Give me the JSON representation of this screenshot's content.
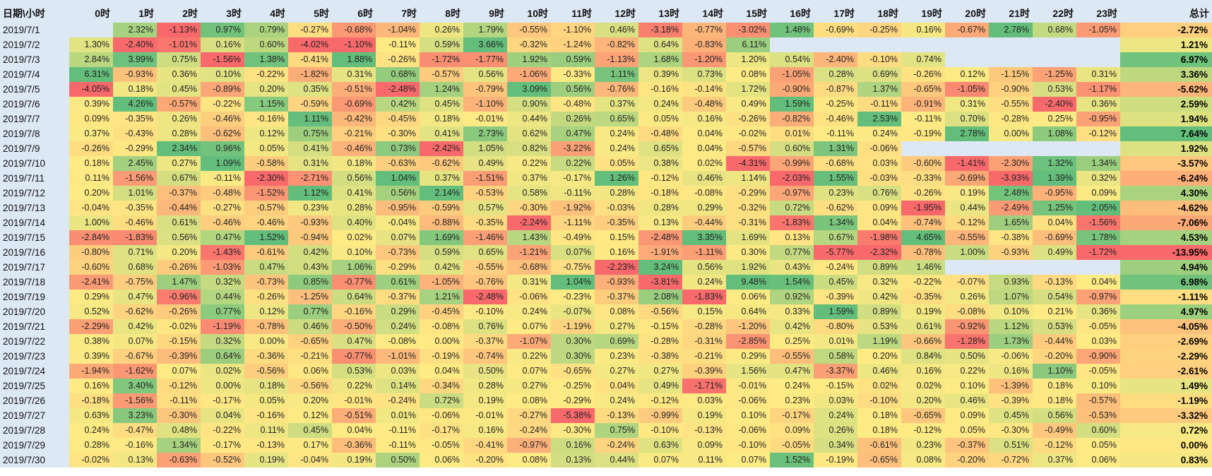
{
  "chart_data": {
    "type": "heatmap",
    "corner_label": "日期\\小时",
    "hours": [
      "0时",
      "1时",
      "2时",
      "3时",
      "4时",
      "5时",
      "6时",
      "7时",
      "8时",
      "9时",
      "10时",
      "11时",
      "12时",
      "13时",
      "14时",
      "15时",
      "16时",
      "17时",
      "18时",
      "19时",
      "20时",
      "21时",
      "22时",
      "23时"
    ],
    "total_label": "总计",
    "color_scale": {
      "min_color": "#f8696b",
      "mid_color": "#ffeb84",
      "max_color": "#63be7b",
      "total_max_color": "#63be7b"
    },
    "rows": [
      {
        "date": "2019/7/1",
        "values": [
          "",
          "2.32%",
          "-1.13%",
          "0.97%",
          "0.79%",
          "-0.27%",
          "-0.68%",
          "-1.04%",
          "0.26%",
          "1.79%",
          "-0.55%",
          "-1.10%",
          "0.46%",
          "-3.18%",
          "-0.77%",
          "-3.02%",
          "1.48%",
          "-0.69%",
          "-0.25%",
          "0.16%",
          "-0.67%",
          "2.78%",
          "0.68%",
          "-1.05%"
        ],
        "total": "-2.72%"
      },
      {
        "date": "2019/7/2",
        "values": [
          "1.30%",
          "-2.40%",
          "-1.01%",
          "0.16%",
          "0.60%",
          "-4.02%",
          "-1.10%",
          "-0.11%",
          "0.59%",
          "3.66%",
          "-0.32%",
          "-1.24%",
          "-0.82%",
          "0.64%",
          "-0.83%",
          "6.11%",
          "",
          "",
          "",
          "",
          "",
          "",
          "",
          ""
        ],
        "total": "1.21%"
      },
      {
        "date": "2019/7/3",
        "values": [
          "2.84%",
          "3.99%",
          "0.75%",
          "-1.56%",
          "1.38%",
          "-0.41%",
          "1.88%",
          "-0.26%",
          "-1.72%",
          "-1.77%",
          "1.92%",
          "0.59%",
          "-1.13%",
          "1.68%",
          "-1.20%",
          "1.20%",
          "0.54%",
          "-2.40%",
          "-0.10%",
          "0.74%",
          "",
          "",
          "",
          ""
        ],
        "total": "6.97%"
      },
      {
        "date": "2019/7/4",
        "values": [
          "6.31%",
          "-0.93%",
          "0.36%",
          "0.10%",
          "-0.22%",
          "-1.82%",
          "0.31%",
          "0.68%",
          "-0.57%",
          "0.56%",
          "-1.06%",
          "-0.33%",
          "1.11%",
          "0.39%",
          "0.73%",
          "0.08%",
          "-1.05%",
          "0.28%",
          "0.69%",
          "-0.26%",
          "0.12%",
          "-1.15%",
          "-1.25%",
          "0.31%"
        ],
        "total": "3.36%"
      },
      {
        "date": "2019/7/5",
        "values": [
          "-4.05%",
          "0.18%",
          "0.45%",
          "-0.89%",
          "0.20%",
          "0.35%",
          "-0.51%",
          "-2.48%",
          "1.24%",
          "-0.79%",
          "3.09%",
          "0.56%",
          "-0.76%",
          "-0.16%",
          "-0.14%",
          "1.72%",
          "-0.90%",
          "-0.87%",
          "1.37%",
          "-0.65%",
          "-1.05%",
          "-0.90%",
          "0.53%",
          "-1.17%"
        ],
        "total": "-5.62%"
      },
      {
        "date": "2019/7/6",
        "values": [
          "0.39%",
          "4.26%",
          "-0.57%",
          "-0.22%",
          "1.15%",
          "-0.59%",
          "-0.69%",
          "0.42%",
          "0.45%",
          "-1.10%",
          "0.90%",
          "-0.48%",
          "0.37%",
          "0.24%",
          "-0.48%",
          "0.49%",
          "1.59%",
          "-0.25%",
          "-0.11%",
          "-0.91%",
          "0.31%",
          "-0.55%",
          "-2.40%",
          "0.36%"
        ],
        "total": "2.59%"
      },
      {
        "date": "2019/7/7",
        "values": [
          "0.09%",
          "-0.35%",
          "0.26%",
          "-0.46%",
          "-0.16%",
          "1.11%",
          "-0.42%",
          "-0.45%",
          "0.18%",
          "-0.01%",
          "0.44%",
          "0.26%",
          "0.65%",
          "0.05%",
          "0.16%",
          "-0.26%",
          "-0.82%",
          "-0.46%",
          "2.53%",
          "-0.11%",
          "0.70%",
          "-0.28%",
          "0.25%",
          "-0.95%"
        ],
        "total": "1.94%"
      },
      {
        "date": "2019/7/8",
        "values": [
          "0.37%",
          "-0.43%",
          "0.28%",
          "-0.62%",
          "0.12%",
          "0.75%",
          "-0.21%",
          "-0.30%",
          "0.41%",
          "2.73%",
          "0.62%",
          "0.47%",
          "0.24%",
          "-0.48%",
          "0.04%",
          "-0.02%",
          "0.01%",
          "-0.11%",
          "0.24%",
          "-0.19%",
          "2.78%",
          "0.00%",
          "1.08%",
          "-0.12%"
        ],
        "total": "7.64%"
      },
      {
        "date": "2019/7/9",
        "values": [
          "-0.26%",
          "-0.29%",
          "2.34%",
          "0.96%",
          "0.05%",
          "0.41%",
          "-0.46%",
          "0.73%",
          "-2.42%",
          "1.05%",
          "0.82%",
          "-3.22%",
          "0.24%",
          "0.65%",
          "0.04%",
          "-0.57%",
          "0.60%",
          "1.31%",
          "-0.06%",
          "",
          "",
          "",
          "",
          ""
        ],
        "total": "1.92%"
      },
      {
        "date": "2019/7/10",
        "values": [
          "0.18%",
          "2.45%",
          "0.27%",
          "1.09%",
          "-0.58%",
          "0.31%",
          "0.18%",
          "-0.63%",
          "-0.62%",
          "0.49%",
          "0.22%",
          "0.22%",
          "0.05%",
          "0.38%",
          "0.02%",
          "-4.31%",
          "-0.99%",
          "-0.68%",
          "0.03%",
          "-0.60%",
          "-1.41%",
          "-2.30%",
          "1.32%",
          "1.34%"
        ],
        "total": "-3.57%"
      },
      {
        "date": "2019/7/11",
        "values": [
          "0.11%",
          "-1.56%",
          "0.67%",
          "-0.11%",
          "-2.30%",
          "-2.71%",
          "0.56%",
          "1.04%",
          "0.37%",
          "-1.51%",
          "0.37%",
          "-0.17%",
          "1.26%",
          "-0.12%",
          "0.46%",
          "1.14%",
          "-2.03%",
          "1.55%",
          "-0.03%",
          "-0.33%",
          "-0.69%",
          "-3.93%",
          "1.39%",
          "0.32%"
        ],
        "total": "-6.24%"
      },
      {
        "date": "2019/7/12",
        "values": [
          "0.20%",
          "1.01%",
          "-0.37%",
          "-0.48%",
          "-1.52%",
          "1.12%",
          "0.41%",
          "0.56%",
          "2.14%",
          "-0.53%",
          "0.58%",
          "-0.11%",
          "0.28%",
          "-0.18%",
          "-0.08%",
          "-0.29%",
          "-0.97%",
          "0.23%",
          "0.76%",
          "-0.26%",
          "0.19%",
          "2.48%",
          "-0.95%",
          "0.09%"
        ],
        "total": "4.30%"
      },
      {
        "date": "2019/7/13",
        "values": [
          "-0.04%",
          "-0.35%",
          "-0.44%",
          "-0.27%",
          "-0.57%",
          "0.23%",
          "0.28%",
          "-0.95%",
          "-0.59%",
          "0.57%",
          "-0.30%",
          "-1.92%",
          "-0.03%",
          "0.28%",
          "0.29%",
          "-0.32%",
          "0.72%",
          "-0.62%",
          "0.09%",
          "-1.95%",
          "0.44%",
          "-2.49%",
          "1.25%",
          "2.05%"
        ],
        "total": "-4.62%"
      },
      {
        "date": "2019/7/14",
        "values": [
          "1.00%",
          "-0.46%",
          "0.61%",
          "-0.46%",
          "-0.46%",
          "-0.93%",
          "0.40%",
          "-0.04%",
          "-0.88%",
          "-0.35%",
          "-2.24%",
          "-1.11%",
          "-0.35%",
          "0.13%",
          "-0.44%",
          "-0.31%",
          "-1.83%",
          "1.34%",
          "0.04%",
          "-0.74%",
          "-0.12%",
          "1.65%",
          "0.04%",
          "-1.56%"
        ],
        "total": "-7.06%"
      },
      {
        "date": "2019/7/15",
        "values": [
          "-2.84%",
          "-1.83%",
          "0.56%",
          "0.47%",
          "1.52%",
          "-0.94%",
          "0.02%",
          "0.07%",
          "1.69%",
          "-1.46%",
          "1.43%",
          "-0.49%",
          "0.15%",
          "-2.48%",
          "3.35%",
          "1.69%",
          "0.13%",
          "0.67%",
          "-1.98%",
          "4.65%",
          "-0.55%",
          "-0.38%",
          "-0.69%",
          "1.78%"
        ],
        "total": "4.53%"
      },
      {
        "date": "2019/7/16",
        "values": [
          "-0.80%",
          "0.71%",
          "0.20%",
          "-1.43%",
          "-0.61%",
          "0.42%",
          "0.10%",
          "-0.73%",
          "0.59%",
          "0.65%",
          "-1.21%",
          "0.07%",
          "0.16%",
          "-1.91%",
          "-1.11%",
          "0.30%",
          "0.77%",
          "-5.77%",
          "-2.32%",
          "-0.78%",
          "1.00%",
          "-0.93%",
          "0.49%",
          "-1.72%"
        ],
        "total": "-13.95%"
      },
      {
        "date": "2019/7/17",
        "values": [
          "-0.60%",
          "0.68%",
          "-0.26%",
          "-1.03%",
          "0.47%",
          "0.43%",
          "1.06%",
          "-0.29%",
          "0.42%",
          "-0.55%",
          "-0.68%",
          "-0.75%",
          "-2.23%",
          "3.24%",
          "0.56%",
          "1.92%",
          "0.43%",
          "-0.24%",
          "0.89%",
          "1.46%",
          "",
          "",
          "",
          ""
        ],
        "total": "4.94%"
      },
      {
        "date": "2019/7/18",
        "values": [
          "-2.41%",
          "-0.75%",
          "1.47%",
          "0.32%",
          "-0.73%",
          "0.85%",
          "-0.77%",
          "0.61%",
          "-1.05%",
          "-0.76%",
          "0.31%",
          "1.04%",
          "-0.93%",
          "-3.81%",
          "0.24%",
          "9.48%",
          "1.54%",
          "0.45%",
          "0.32%",
          "-0.22%",
          "-0.07%",
          "0.93%",
          "-0.13%",
          "0.04%"
        ],
        "total": "6.98%"
      },
      {
        "date": "2019/7/19",
        "values": [
          "0.29%",
          "0.47%",
          "-0.96%",
          "0.44%",
          "-0.26%",
          "-1.25%",
          "0.64%",
          "-0.37%",
          "1.21%",
          "-2.48%",
          "-0.06%",
          "-0.23%",
          "-0.37%",
          "2.08%",
          "-1.83%",
          "0.06%",
          "0.92%",
          "-0.39%",
          "0.42%",
          "-0.35%",
          "0.26%",
          "1.07%",
          "0.54%",
          "-0.97%"
        ],
        "total": "-1.11%"
      },
      {
        "date": "2019/7/20",
        "values": [
          "0.52%",
          "-0.62%",
          "-0.26%",
          "0.77%",
          "0.12%",
          "0.77%",
          "-0.16%",
          "0.29%",
          "-0.45%",
          "-0.10%",
          "0.24%",
          "-0.07%",
          "0.08%",
          "-0.56%",
          "0.15%",
          "0.64%",
          "0.33%",
          "1.59%",
          "0.89%",
          "0.19%",
          "-0.08%",
          "0.10%",
          "0.21%",
          "0.36%"
        ],
        "total": "4.97%"
      },
      {
        "date": "2019/7/21",
        "values": [
          "-2.29%",
          "0.42%",
          "-0.02%",
          "-1.19%",
          "-0.78%",
          "0.46%",
          "-0.50%",
          "0.24%",
          "-0.08%",
          "0.76%",
          "0.07%",
          "-1.19%",
          "0.27%",
          "-0.15%",
          "-0.28%",
          "-1.20%",
          "0.42%",
          "-0.80%",
          "0.53%",
          "0.61%",
          "-0.92%",
          "1.12%",
          "0.53%",
          "-0.05%"
        ],
        "total": "-4.05%"
      },
      {
        "date": "2019/7/22",
        "values": [
          "0.38%",
          "0.07%",
          "-0.15%",
          "0.32%",
          "0.00%",
          "-0.65%",
          "0.47%",
          "-0.08%",
          "0.00%",
          "-0.37%",
          "-1.07%",
          "0.30%",
          "0.69%",
          "-0.28%",
          "-0.31%",
          "-2.85%",
          "0.25%",
          "0.01%",
          "1.19%",
          "-0.66%",
          "-1.28%",
          "1.73%",
          "-0.44%",
          "0.03%"
        ],
        "total": "-2.69%"
      },
      {
        "date": "2019/7/23",
        "values": [
          "0.39%",
          "-0.67%",
          "-0.39%",
          "0.64%",
          "-0.36%",
          "-0.21%",
          "-0.77%",
          "-1.01%",
          "-0.19%",
          "-0.74%",
          "0.22%",
          "0.30%",
          "0.23%",
          "-0.38%",
          "-0.21%",
          "0.29%",
          "-0.55%",
          "0.58%",
          "0.20%",
          "0.84%",
          "0.50%",
          "-0.06%",
          "-0.20%",
          "-0.90%"
        ],
        "total": "-2.29%"
      },
      {
        "date": "2019/7/24",
        "values": [
          "-1.94%",
          "-1.62%",
          "0.07%",
          "0.02%",
          "-0.56%",
          "0.06%",
          "0.53%",
          "0.03%",
          "0.04%",
          "0.50%",
          "0.07%",
          "-0.65%",
          "0.27%",
          "0.27%",
          "-0.39%",
          "1.56%",
          "0.47%",
          "-3.37%",
          "0.46%",
          "0.16%",
          "0.22%",
          "0.16%",
          "1.10%",
          "-0.05%"
        ],
        "total": "-2.61%"
      },
      {
        "date": "2019/7/25",
        "values": [
          "0.16%",
          "3.40%",
          "-0.12%",
          "0.00%",
          "0.18%",
          "-0.56%",
          "0.22%",
          "0.14%",
          "-0.34%",
          "0.28%",
          "0.27%",
          "-0.25%",
          "0.04%",
          "0.49%",
          "-1.71%",
          "-0.01%",
          "0.24%",
          "-0.15%",
          "0.02%",
          "0.02%",
          "0.10%",
          "-1.39%",
          "0.18%",
          "0.10%"
        ],
        "total": "1.49%"
      },
      {
        "date": "2019/7/26",
        "values": [
          "-0.18%",
          "-1.56%",
          "-0.11%",
          "-0.17%",
          "0.05%",
          "0.20%",
          "-0.01%",
          "-0.24%",
          "0.72%",
          "0.19%",
          "0.08%",
          "-0.29%",
          "0.24%",
          "-0.12%",
          "0.03%",
          "-0.06%",
          "0.23%",
          "0.03%",
          "-0.10%",
          "0.20%",
          "0.46%",
          "-0.39%",
          "0.18%",
          "-0.57%"
        ],
        "total": "-1.19%"
      },
      {
        "date": "2019/7/27",
        "values": [
          "0.63%",
          "3.23%",
          "-0.30%",
          "0.04%",
          "-0.16%",
          "0.12%",
          "-0.51%",
          "0.01%",
          "-0.06%",
          "-0.01%",
          "-0.27%",
          "-5.38%",
          "-0.13%",
          "-0.99%",
          "0.19%",
          "0.10%",
          "-0.17%",
          "0.24%",
          "0.18%",
          "-0.65%",
          "0.09%",
          "0.45%",
          "0.56%",
          "-0.53%"
        ],
        "total": "-3.32%"
      },
      {
        "date": "2019/7/28",
        "values": [
          "0.24%",
          "-0.47%",
          "0.48%",
          "-0.22%",
          "0.11%",
          "0.45%",
          "0.04%",
          "-0.11%",
          "-0.17%",
          "0.16%",
          "-0.24%",
          "-0.30%",
          "0.75%",
          "-0.10%",
          "-0.13%",
          "-0.06%",
          "0.09%",
          "0.26%",
          "0.18%",
          "-0.12%",
          "0.05%",
          "-0.30%",
          "-0.49%",
          "0.60%"
        ],
        "total": "0.72%"
      },
      {
        "date": "2019/7/29",
        "values": [
          "0.28%",
          "-0.16%",
          "1.34%",
          "-0.17%",
          "-0.13%",
          "0.17%",
          "-0.36%",
          "-0.11%",
          "-0.05%",
          "-0.41%",
          "-0.97%",
          "0.16%",
          "-0.24%",
          "0.63%",
          "0.09%",
          "-0.10%",
          "-0.05%",
          "0.34%",
          "-0.61%",
          "0.23%",
          "-0.37%",
          "0.51%",
          "-0.12%",
          "0.05%"
        ],
        "total": "0.00%"
      },
      {
        "date": "2019/7/30",
        "values": [
          "-0.02%",
          "0.13%",
          "-0.63%",
          "-0.52%",
          "0.19%",
          "-0.04%",
          "0.19%",
          "0.50%",
          "0.06%",
          "-0.20%",
          "0.08%",
          "0.13%",
          "0.44%",
          "0.07%",
          "0.11%",
          "0.07%",
          "1.52%",
          "-0.19%",
          "-0.65%",
          "0.08%",
          "-0.20%",
          "-0.72%",
          "0.37%",
          "0.06%"
        ],
        "total": "0.83%"
      }
    ]
  }
}
